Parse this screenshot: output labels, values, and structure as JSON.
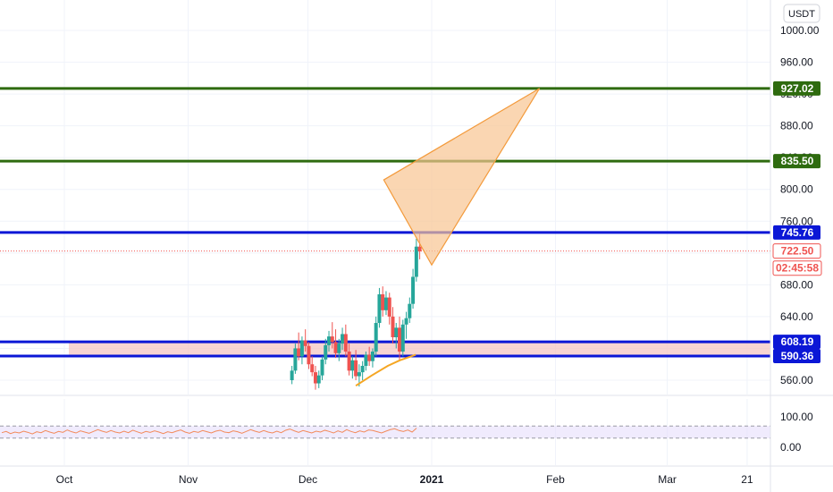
{
  "currency_label": "USDT",
  "colors": {
    "up": "#26a69a",
    "down": "#ef5350",
    "hline_green": "#2e6b0f",
    "hline_blue": "#0b17d6",
    "zone_fill": "#f4c7c3",
    "triangle_fill": "#f8c592",
    "triangle_stroke": "#f39a3b",
    "ma": "#f5a623",
    "rsi": "#f28a5a",
    "rsi_band": "#e6ddfb"
  },
  "chart_data": [
    {
      "type": "candlestick",
      "title": "",
      "y_ticks": [
        "1000.00",
        "960.00",
        "920.00",
        "880.00",
        "840.00",
        "800.00",
        "760.00",
        "720.00",
        "680.00",
        "640.00",
        "600.00",
        "560.00"
      ],
      "ylim": [
        550,
        1025
      ],
      "x_tick_labels": [
        "Oct",
        "Nov",
        "Dec",
        "2021",
        "Feb",
        "Mar",
        "21"
      ],
      "price_labels": [
        {
          "text": "927.02",
          "value": 927.02,
          "style": "green"
        },
        {
          "text": "835.50",
          "value": 835.5,
          "style": "green"
        },
        {
          "text": "745.76",
          "value": 745.76,
          "style": "blue"
        },
        {
          "text": "722.50",
          "value": 722.5,
          "style": "red"
        },
        {
          "text": "02:45:58",
          "value": 701,
          "style": "red"
        },
        {
          "text": "608.19",
          "value": 608.19,
          "style": "blue"
        },
        {
          "text": "590.36",
          "value": 590.36,
          "style": "blue"
        }
      ],
      "horizontal_lines": [
        {
          "value": 927.02,
          "color": "green"
        },
        {
          "value": 835.5,
          "color": "green"
        },
        {
          "value": 745.76,
          "color": "blue"
        },
        {
          "value": 608.19,
          "color": "blue"
        },
        {
          "value": 590.36,
          "color": "blue"
        }
      ],
      "support_zone": {
        "from": 590.36,
        "to": 608.19
      },
      "last_price": 722.5,
      "triangle": [
        {
          "date": "2020-12-20",
          "price": 812
        },
        {
          "date": "2021-01-28",
          "price": 927
        },
        {
          "date": "2021-01-01",
          "price": 705
        }
      ],
      "candles_ohlc": [
        [
          560,
          578,
          555,
          572
        ],
        [
          572,
          606,
          568,
          600
        ],
        [
          600,
          620,
          585,
          590
        ],
        [
          590,
          615,
          580,
          610
        ],
        [
          610,
          624,
          596,
          603
        ],
        [
          603,
          608,
          574,
          580
        ],
        [
          580,
          590,
          565,
          570
        ],
        [
          570,
          578,
          548,
          556
        ],
        [
          556,
          572,
          550,
          566
        ],
        [
          566,
          590,
          560,
          586
        ],
        [
          586,
          612,
          580,
          604
        ],
        [
          604,
          622,
          596,
          615
        ],
        [
          615,
          633,
          600,
          608
        ],
        [
          608,
          624,
          588,
          594
        ],
        [
          594,
          612,
          584,
          606
        ],
        [
          606,
          626,
          598,
          618
        ],
        [
          618,
          630,
          590,
          596
        ],
        [
          596,
          606,
          566,
          572
        ],
        [
          572,
          590,
          562,
          585
        ],
        [
          585,
          598,
          560,
          565
        ],
        [
          565,
          580,
          552,
          570
        ],
        [
          570,
          584,
          560,
          578
        ],
        [
          578,
          596,
          572,
          592
        ],
        [
          592,
          602,
          578,
          584
        ],
        [
          584,
          600,
          576,
          596
        ],
        [
          596,
          640,
          590,
          632
        ],
        [
          632,
          676,
          626,
          668
        ],
        [
          668,
          678,
          640,
          648
        ],
        [
          648,
          672,
          642,
          664
        ],
        [
          664,
          670,
          630,
          640
        ],
        [
          640,
          652,
          606,
          614
        ],
        [
          614,
          632,
          600,
          626
        ],
        [
          626,
          640,
          586,
          596
        ],
        [
          596,
          636,
          590,
          630
        ],
        [
          630,
          646,
          612,
          638
        ],
        [
          638,
          664,
          632,
          656
        ],
        [
          656,
          700,
          650,
          690
        ],
        [
          690,
          738,
          684,
          728
        ],
        [
          728,
          744,
          712,
          722
        ]
      ],
      "moving_average": [
        {
          "date": "2020-12-13",
          "price": 553
        },
        {
          "date": "2020-12-17",
          "price": 566
        },
        {
          "date": "2020-12-21",
          "price": 578
        },
        {
          "date": "2020-12-24",
          "price": 585
        },
        {
          "date": "2020-12-28",
          "price": 592
        }
      ]
    },
    {
      "type": "line",
      "title": "",
      "y_ticks": [
        "100.00",
        "0.00"
      ],
      "band": [
        30,
        70
      ],
      "series": [
        {
          "values": [
            48,
            52,
            45,
            50,
            47,
            53,
            49,
            44,
            51,
            48,
            55,
            50,
            46,
            52,
            49,
            57,
            51,
            47,
            54,
            50,
            46,
            52,
            58,
            53,
            49,
            55,
            50,
            47,
            53,
            48,
            56,
            51,
            46,
            52,
            49,
            54,
            50,
            45,
            51,
            48,
            53,
            57,
            50,
            46,
            52,
            49,
            55,
            51,
            47,
            53,
            56,
            50,
            48,
            54,
            51,
            46,
            52,
            58,
            53,
            49,
            55,
            50,
            47,
            53,
            48,
            56,
            60,
            54,
            49,
            55,
            51,
            47,
            53,
            50,
            56,
            52,
            47,
            54,
            49,
            58,
            52,
            48,
            54,
            50,
            57,
            55,
            51,
            47,
            53,
            58,
            61,
            55,
            52,
            57,
            50,
            63
          ]
        }
      ]
    }
  ]
}
